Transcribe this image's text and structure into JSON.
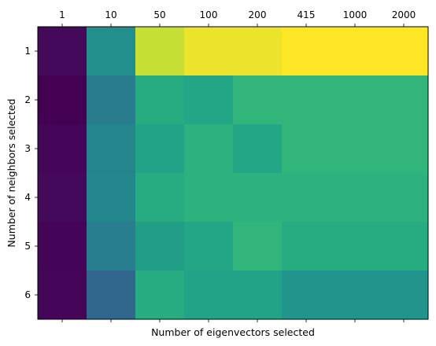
{
  "chart_data": {
    "type": "heatmap",
    "title": "",
    "xlabel": "Number of eigenvectors selected",
    "ylabel": "Number of neighbors selected",
    "x_categories": [
      "1",
      "10",
      "50",
      "100",
      "200",
      "415",
      "1000",
      "2000"
    ],
    "y_categories": [
      "1",
      "2",
      "3",
      "4",
      "5",
      "6"
    ],
    "x_tick_position": "top",
    "colormap": "viridis",
    "value_range": [
      0,
      1
    ],
    "values": [
      [
        0.03,
        0.62,
        0.97,
        0.99,
        0.99,
        1.0,
        1.0,
        1.0
      ],
      [
        0.0,
        0.52,
        0.77,
        0.74,
        0.81,
        0.81,
        0.81,
        0.81
      ],
      [
        0.02,
        0.57,
        0.72,
        0.79,
        0.74,
        0.81,
        0.81,
        0.81
      ],
      [
        0.03,
        0.58,
        0.77,
        0.79,
        0.79,
        0.79,
        0.79,
        0.79
      ],
      [
        0.01,
        0.53,
        0.7,
        0.74,
        0.81,
        0.77,
        0.77,
        0.77
      ],
      [
        0.02,
        0.42,
        0.77,
        0.72,
        0.72,
        0.65,
        0.65,
        0.65
      ]
    ]
  }
}
